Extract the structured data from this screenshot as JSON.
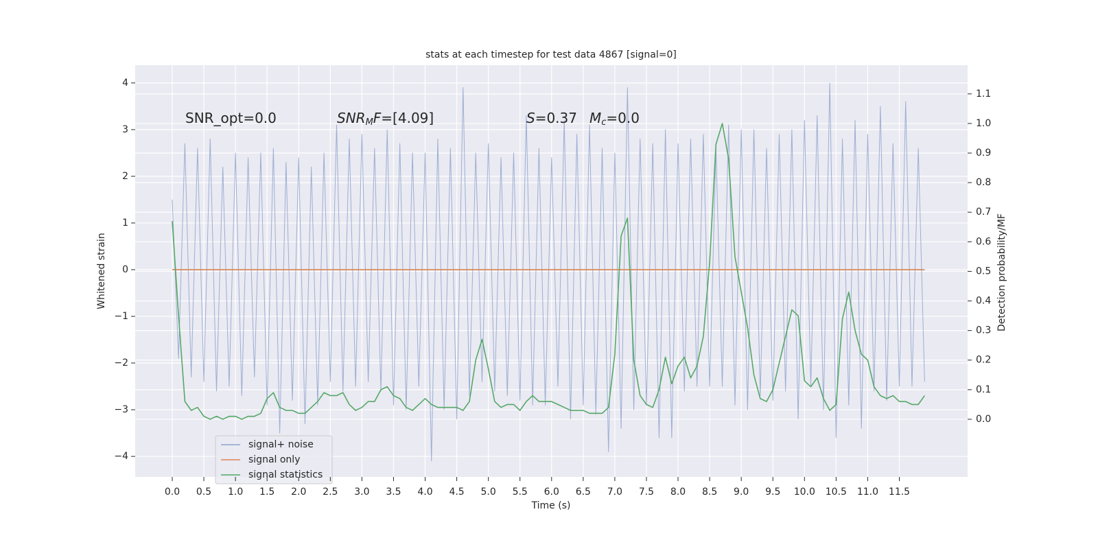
{
  "chart_data": {
    "type": "line",
    "title": "stats at each timestep for test data 4867 [signal=0]",
    "xlabel": "Time (s)",
    "ylabel": "Whitened strain",
    "y2label": "Detection probability/MF",
    "annotations": [
      {
        "parts": [
          "SNR_opt=0.0"
        ]
      },
      {
        "parts": [
          "SNR",
          "M",
          "F",
          "=[4.09]"
        ]
      },
      {
        "parts": [
          "S",
          "=0.37"
        ]
      },
      {
        "parts": [
          "M",
          "c",
          "=0.0"
        ]
      }
    ],
    "x": [
      0.0,
      0.1,
      0.2,
      0.3,
      0.4,
      0.5,
      0.6,
      0.7,
      0.8,
      0.9,
      1.0,
      1.1,
      1.2,
      1.3,
      1.4,
      1.5,
      1.6,
      1.7,
      1.8,
      1.9,
      2.0,
      2.1,
      2.2,
      2.3,
      2.4,
      2.5,
      2.6,
      2.7,
      2.8,
      2.9,
      3.0,
      3.1,
      3.2,
      3.3,
      3.4,
      3.5,
      3.6,
      3.7,
      3.8,
      3.9,
      4.0,
      4.1,
      4.2,
      4.3,
      4.4,
      4.5,
      4.6,
      4.7,
      4.8,
      4.9,
      5.0,
      5.1,
      5.2,
      5.3,
      5.4,
      5.5,
      5.6,
      5.7,
      5.8,
      5.9,
      6.0,
      6.1,
      6.2,
      6.3,
      6.4,
      6.5,
      6.6,
      6.7,
      6.8,
      6.9,
      7.0,
      7.1,
      7.2,
      7.3,
      7.4,
      7.5,
      7.6,
      7.7,
      7.8,
      7.9,
      8.0,
      8.1,
      8.2,
      8.3,
      8.4,
      8.5,
      8.6,
      8.7,
      8.8,
      8.9,
      9.0,
      9.1,
      9.2,
      9.3,
      9.4,
      9.5,
      9.6,
      9.7,
      9.8,
      9.9,
      10.0,
      10.1,
      10.2,
      10.3,
      10.4,
      10.5,
      10.6,
      10.7,
      10.8,
      10.9,
      11.0,
      11.1,
      11.2,
      11.3,
      11.4,
      11.5,
      11.6,
      11.7,
      11.8,
      11.9
    ],
    "series": [
      {
        "name": "signal+ noise",
        "color": "#8fa3cc",
        "axis": "y",
        "values": [
          1.5,
          -1.9,
          2.7,
          -2.3,
          2.6,
          -2.4,
          2.8,
          -2.6,
          2.2,
          -2.5,
          2.5,
          -2.7,
          2.4,
          -2.3,
          2.5,
          -2.9,
          2.6,
          -3.5,
          2.3,
          -2.8,
          2.4,
          -3.3,
          2.2,
          -2.9,
          2.5,
          -2.4,
          3.1,
          -2.6,
          2.8,
          -2.5,
          2.9,
          -2.4,
          2.6,
          -2.6,
          3.0,
          -2.9,
          2.7,
          -3.0,
          2.5,
          -2.5,
          2.5,
          -4.1,
          2.8,
          -3.0,
          2.6,
          -3.2,
          3.9,
          -2.7,
          2.5,
          -2.4,
          2.7,
          -2.6,
          2.4,
          -2.7,
          2.5,
          -2.8,
          3.3,
          -2.9,
          2.6,
          -2.9,
          2.4,
          -2.5,
          3.2,
          -3.2,
          2.9,
          -2.9,
          3.1,
          -3.1,
          2.6,
          -3.9,
          2.5,
          -3.4,
          3.9,
          -3.0,
          2.8,
          -2.9,
          2.7,
          -3.6,
          3.0,
          -3.6,
          2.7,
          -2.6,
          2.8,
          -2.5,
          2.9,
          -2.5,
          2.6,
          -2.5,
          3.1,
          -2.9,
          3.0,
          -3.0,
          3.0,
          -2.7,
          2.6,
          -2.8,
          2.9,
          -2.6,
          3.0,
          -3.2,
          3.2,
          -2.5,
          3.3,
          -3.0,
          4.0,
          -3.6,
          2.8,
          -2.9,
          3.2,
          -3.4,
          2.9,
          -2.6,
          3.5,
          -2.8,
          2.7,
          -2.5,
          3.6,
          -2.5,
          2.6,
          -2.4
        ]
      },
      {
        "name": "signal only",
        "color": "#dd8452",
        "axis": "y",
        "values": [
          0,
          0,
          0,
          0,
          0,
          0,
          0,
          0,
          0,
          0,
          0,
          0,
          0,
          0,
          0,
          0,
          0,
          0,
          0,
          0,
          0,
          0,
          0,
          0,
          0,
          0,
          0,
          0,
          0,
          0,
          0,
          0,
          0,
          0,
          0,
          0,
          0,
          0,
          0,
          0,
          0,
          0,
          0,
          0,
          0,
          0,
          0,
          0,
          0,
          0,
          0,
          0,
          0,
          0,
          0,
          0,
          0,
          0,
          0,
          0,
          0,
          0,
          0,
          0,
          0,
          0,
          0,
          0,
          0,
          0,
          0,
          0,
          0,
          0,
          0,
          0,
          0,
          0,
          0,
          0,
          0,
          0,
          0,
          0,
          0,
          0,
          0,
          0,
          0,
          0,
          0,
          0,
          0,
          0,
          0,
          0,
          0,
          0,
          0,
          0,
          0,
          0,
          0,
          0,
          0,
          0,
          0,
          0,
          0,
          0,
          0,
          0,
          0,
          0,
          0,
          0,
          0,
          0,
          0,
          0
        ]
      },
      {
        "name": "signal statistics",
        "color": "#55a868",
        "axis": "y2",
        "values": [
          0.67,
          0.35,
          0.06,
          0.03,
          0.04,
          0.01,
          0.0,
          0.01,
          0.0,
          0.01,
          0.01,
          0.0,
          0.01,
          0.01,
          0.02,
          0.07,
          0.09,
          0.04,
          0.03,
          0.03,
          0.02,
          0.02,
          0.04,
          0.06,
          0.09,
          0.08,
          0.08,
          0.09,
          0.05,
          0.03,
          0.04,
          0.06,
          0.06,
          0.1,
          0.11,
          0.08,
          0.07,
          0.04,
          0.03,
          0.05,
          0.07,
          0.05,
          0.04,
          0.04,
          0.04,
          0.04,
          0.03,
          0.06,
          0.2,
          0.27,
          0.17,
          0.06,
          0.04,
          0.05,
          0.05,
          0.03,
          0.06,
          0.08,
          0.06,
          0.06,
          0.06,
          0.05,
          0.04,
          0.03,
          0.03,
          0.03,
          0.02,
          0.02,
          0.02,
          0.04,
          0.22,
          0.62,
          0.68,
          0.2,
          0.08,
          0.05,
          0.04,
          0.1,
          0.21,
          0.12,
          0.18,
          0.21,
          0.14,
          0.18,
          0.28,
          0.53,
          0.93,
          1.0,
          0.88,
          0.55,
          0.43,
          0.31,
          0.15,
          0.07,
          0.06,
          0.1,
          0.19,
          0.28,
          0.37,
          0.35,
          0.13,
          0.11,
          0.14,
          0.07,
          0.03,
          0.05,
          0.34,
          0.43,
          0.3,
          0.22,
          0.2,
          0.11,
          0.08,
          0.07,
          0.08,
          0.06,
          0.06,
          0.05,
          0.05,
          0.08
        ]
      }
    ],
    "xlim": [
      -0.586,
      12.58
    ],
    "xticks": [
      {
        "value": 0,
        "label": "0.0"
      },
      {
        "value": 0.5,
        "label": "0.5"
      },
      {
        "value": 1,
        "label": "1.0"
      },
      {
        "value": 1.5,
        "label": "1.5"
      },
      {
        "value": 2,
        "label": "2.0"
      },
      {
        "value": 2.5,
        "label": "2.5"
      },
      {
        "value": 3,
        "label": "3.0"
      },
      {
        "value": 3.5,
        "label": "3.5"
      },
      {
        "value": 4,
        "label": "4.0"
      },
      {
        "value": 4.5,
        "label": "4.5"
      },
      {
        "value": 5,
        "label": "5.0"
      },
      {
        "value": 5.5,
        "label": "5.5"
      },
      {
        "value": 6,
        "label": "6.0"
      },
      {
        "value": 6.5,
        "label": "6.5"
      },
      {
        "value": 7,
        "label": "7.0"
      },
      {
        "value": 7.5,
        "label": "7.5"
      },
      {
        "value": 8,
        "label": "8.0"
      },
      {
        "value": 8.5,
        "label": "8.5"
      },
      {
        "value": 9,
        "label": "9.0"
      },
      {
        "value": 9.5,
        "label": "9.5"
      },
      {
        "value": 10,
        "label": "10.0"
      },
      {
        "value": 10.5,
        "label": "10.5"
      },
      {
        "value": 11,
        "label": "11.0"
      },
      {
        "value": 11.5,
        "label": "11.5"
      }
    ],
    "ylim": [
      -4.44,
      4.38
    ],
    "yticks": [
      {
        "value": -4,
        "label": "−4"
      },
      {
        "value": -3,
        "label": "−3"
      },
      {
        "value": -2,
        "label": "−2"
      },
      {
        "value": -1,
        "label": "−1"
      },
      0,
      1,
      2,
      3,
      4
    ],
    "y2lim": [
      -0.195,
      1.197
    ],
    "y2ticks": [
      {
        "value": 0,
        "label": "0.0"
      },
      {
        "value": 0.1,
        "label": "0.1"
      },
      {
        "value": 0.2,
        "label": "0.2"
      },
      {
        "value": 0.3,
        "label": "0.3"
      },
      {
        "value": 0.4,
        "label": "0.4"
      },
      {
        "value": 0.5,
        "label": "0.5"
      },
      {
        "value": 0.6,
        "label": "0.6"
      },
      {
        "value": 0.7,
        "label": "0.7"
      },
      {
        "value": 0.8,
        "label": "0.8"
      },
      {
        "value": 0.9,
        "label": "0.9"
      },
      {
        "value": 1,
        "label": "1.0"
      },
      {
        "value": 1.1,
        "label": "1.1"
      }
    ],
    "grid": true,
    "legend": "lower left"
  }
}
